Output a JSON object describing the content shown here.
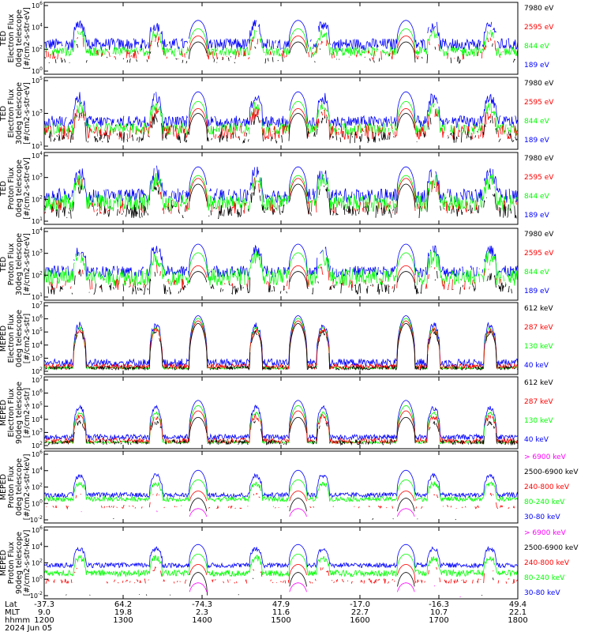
{
  "colors": {
    "black": "#000000",
    "red": "#ff0000",
    "green": "#00ff00",
    "blue": "#0000ff",
    "magenta": "#ff00ff"
  },
  "chart_data": [
    {
      "type": "line",
      "ylabel": [
        "TED",
        "Electron Flux",
        "0deg telescope",
        "[#/cm2-s-str-eV]"
      ],
      "yticks": [
        "10^6",
        "10^4",
        "10^2",
        "10^0"
      ],
      "log_ylim": [
        0,
        6
      ],
      "legend": [
        {
          "label": "7980 eV",
          "color": "black"
        },
        {
          "label": "2595 eV",
          "color": "red"
        },
        {
          "label": "844 eV",
          "color": "green"
        },
        {
          "label": "189 eV",
          "color": "blue"
        }
      ],
      "series": [
        {
          "name": "189 eV",
          "color": "blue",
          "base": 2.5,
          "noise": 0.5,
          "peak": 4.5,
          "dropout": 0.05
        },
        {
          "name": "844 eV",
          "color": "green",
          "base": 1.9,
          "noise": 0.4,
          "peak": 3.8,
          "dropout": 0.1
        },
        {
          "name": "2595 eV",
          "color": "red",
          "base": 1.6,
          "noise": 0.4,
          "peak": 3.2,
          "dropout": 0.5
        },
        {
          "name": "7980 eV",
          "color": "black",
          "base": 1.2,
          "noise": 0.3,
          "peak": 2.7,
          "dropout": 0.7
        }
      ]
    },
    {
      "type": "line",
      "ylabel": [
        "TED",
        "Electron Flux",
        "30deg telescope",
        "[#/cm2-s-str-eV]"
      ],
      "yticks": [
        "10^5",
        "10^3",
        "10^1"
      ],
      "log_ylim": [
        0,
        6
      ],
      "legend": [
        {
          "label": "7980 eV",
          "color": "black"
        },
        {
          "label": "2595 eV",
          "color": "red"
        },
        {
          "label": "844 eV",
          "color": "green"
        },
        {
          "label": "189 eV",
          "color": "blue"
        }
      ],
      "series": [
        {
          "name": "189 eV",
          "color": "blue",
          "base": 2.3,
          "noise": 0.5,
          "peak": 4.8,
          "dropout": 0.05
        },
        {
          "name": "844 eV",
          "color": "green",
          "base": 1.7,
          "noise": 0.5,
          "peak": 4.0,
          "dropout": 0.1
        },
        {
          "name": "2595 eV",
          "color": "red",
          "base": 1.4,
          "noise": 0.6,
          "peak": 3.4,
          "dropout": 0.3
        },
        {
          "name": "7980 eV",
          "color": "black",
          "base": 1.0,
          "noise": 0.5,
          "peak": 3.0,
          "dropout": 0.4
        }
      ]
    },
    {
      "type": "line",
      "ylabel": [
        "TED",
        "Proton Flux",
        "0deg telescope",
        "[#/cm2-s-str-eV]"
      ],
      "yticks": [
        "10^4",
        "10^3",
        "10^2",
        "10^1"
      ],
      "log_ylim": [
        0,
        5
      ],
      "legend": [
        {
          "label": "7980 eV",
          "color": "black"
        },
        {
          "label": "2595 eV",
          "color": "red"
        },
        {
          "label": "844 eV",
          "color": "green"
        },
        {
          "label": "189 eV",
          "color": "blue"
        }
      ],
      "series": [
        {
          "name": "189 eV",
          "color": "blue",
          "base": 2.0,
          "noise": 0.5,
          "peak": 4.0,
          "dropout": 0.15
        },
        {
          "name": "844 eV",
          "color": "green",
          "base": 1.5,
          "noise": 0.6,
          "peak": 3.4,
          "dropout": 0.05
        },
        {
          "name": "2595 eV",
          "color": "red",
          "base": 1.2,
          "noise": 0.5,
          "peak": 3.2,
          "dropout": 0.5
        },
        {
          "name": "7980 eV",
          "color": "black",
          "base": 0.9,
          "noise": 0.5,
          "peak": 2.8,
          "dropout": 0.4
        }
      ]
    },
    {
      "type": "line",
      "ylabel": [
        "TED",
        "Proton Flux",
        "30deg telescope",
        "[#/cm2-s-str-eV]"
      ],
      "yticks": [
        "10^4",
        "10^3",
        "10^2",
        "10^1"
      ],
      "log_ylim": [
        0,
        5
      ],
      "legend": [
        {
          "label": "7980 eV",
          "color": "black"
        },
        {
          "label": "2595 eV",
          "color": "red"
        },
        {
          "label": "844 eV",
          "color": "green"
        },
        {
          "label": "189 eV",
          "color": "blue"
        }
      ],
      "series": [
        {
          "name": "189 eV",
          "color": "blue",
          "base": 2.0,
          "noise": 0.4,
          "peak": 3.9,
          "dropout": 0.1
        },
        {
          "name": "844 eV",
          "color": "green",
          "base": 1.6,
          "noise": 0.6,
          "peak": 3.3,
          "dropout": 0.05
        },
        {
          "name": "2595 eV",
          "color": "red",
          "base": 1.1,
          "noise": 0.4,
          "peak": 2.4,
          "dropout": 0.6
        },
        {
          "name": "7980 eV",
          "color": "black",
          "base": 0.8,
          "noise": 0.4,
          "peak": 2.0,
          "dropout": 0.5
        }
      ]
    },
    {
      "type": "line",
      "ylabel": [
        "MEPED",
        "Electron Flux",
        "0deg telescope",
        "[#/cm2-s-str]"
      ],
      "yticks": [
        "10^7",
        "10^6",
        "10^5",
        "10^4",
        "10^3",
        "10^2"
      ],
      "log_ylim": [
        1.5,
        7
      ],
      "legend": [
        {
          "label": "612 keV",
          "color": "black"
        },
        {
          "label": "287 keV",
          "color": "red"
        },
        {
          "label": "130 keV",
          "color": "green"
        },
        {
          "label": "40 keV",
          "color": "blue"
        }
      ],
      "series": [
        {
          "name": "40 keV",
          "color": "blue",
          "base": 2.4,
          "noise": 0.3,
          "peak": 6.0,
          "dropout": 0
        },
        {
          "name": "130 keV",
          "color": "green",
          "base": 2.0,
          "noise": 0.1,
          "peak": 5.8,
          "dropout": 0
        },
        {
          "name": "287 keV",
          "color": "red",
          "base": 2.1,
          "noise": 0.2,
          "peak": 5.6,
          "dropout": 0
        },
        {
          "name": "612 keV",
          "color": "black",
          "base": 2.0,
          "noise": 0.15,
          "peak": 5.4,
          "dropout": 0.2
        }
      ]
    },
    {
      "type": "line",
      "ylabel": [
        "MEPED",
        "Electron Flux",
        "90deg telescope",
        "[#/cm2-s-str]"
      ],
      "yticks": [
        "10^7",
        "10^6",
        "10^5",
        "10^4",
        "10^3",
        "10^2"
      ],
      "log_ylim": [
        1.5,
        7
      ],
      "legend": [
        {
          "label": "612 keV",
          "color": "black"
        },
        {
          "label": "287 keV",
          "color": "red"
        },
        {
          "label": "130 keV",
          "color": "green"
        },
        {
          "label": "40 keV",
          "color": "blue"
        }
      ],
      "series": [
        {
          "name": "40 keV",
          "color": "blue",
          "base": 2.4,
          "noise": 0.2,
          "peak": 5.2,
          "dropout": 0
        },
        {
          "name": "130 keV",
          "color": "green",
          "base": 2.0,
          "noise": 0.1,
          "peak": 4.8,
          "dropout": 0
        },
        {
          "name": "287 keV",
          "color": "red",
          "base": 2.1,
          "noise": 0.2,
          "peak": 4.4,
          "dropout": 0.05
        },
        {
          "name": "612 keV",
          "color": "black",
          "base": 2.0,
          "noise": 0.2,
          "peak": 3.9,
          "dropout": 0.3
        }
      ]
    },
    {
      "type": "line",
      "ylabel": [
        "MEPED",
        "Proton Flux",
        "0deg telescope",
        "[#/cm2-s-str-keV]"
      ],
      "yticks": [
        "10^6",
        "10^4",
        "10^2",
        "10^0",
        "10^-2"
      ],
      "log_ylim": [
        -3,
        6
      ],
      "legend": [
        {
          "label": "> 6900 keV",
          "color": "magenta"
        },
        {
          "label": "2500-6900 keV",
          "color": "black"
        },
        {
          "label": "240-800 keV",
          "color": "red"
        },
        {
          "label": "80-240 keV",
          "color": "green"
        },
        {
          "label": "30-80 keV",
          "color": "blue"
        }
      ],
      "series": [
        {
          "name": "30-80 keV",
          "color": "blue",
          "base": 0.5,
          "noise": 0.3,
          "peak": 3.6,
          "dropout": 0
        },
        {
          "name": "80-240 keV",
          "color": "green",
          "base": 0.0,
          "noise": 0.3,
          "peak": 2.4,
          "dropout": 0
        },
        {
          "name": "240-800 keV",
          "color": "red",
          "base": -1.0,
          "noise": 0.2,
          "peak": 1.0,
          "dropout": 0.6
        },
        {
          "name": "2500-6900 keV",
          "color": "black",
          "base": -2.5,
          "noise": 0.1,
          "peak": 0.1,
          "dropout": 0.9
        },
        {
          "name": "> 6900 keV",
          "color": "magenta",
          "base": -2.8,
          "noise": 0.1,
          "peak": -1.2,
          "dropout": 0.95
        }
      ]
    },
    {
      "type": "line",
      "ylabel": [
        "MEPED",
        "Proton Flux",
        "90deg telescope",
        "[#/cm2-s-str-keV]"
      ],
      "yticks": [
        "10^6",
        "10^4",
        "10^2",
        "10^0",
        "10^-2"
      ],
      "log_ylim": [
        -3,
        6
      ],
      "legend": [
        {
          "label": "> 6900 keV",
          "color": "magenta"
        },
        {
          "label": "2500-6900 keV",
          "color": "black"
        },
        {
          "label": "240-800 keV",
          "color": "red"
        },
        {
          "label": "80-240 keV",
          "color": "green"
        },
        {
          "label": "30-80 keV",
          "color": "blue"
        }
      ],
      "series": [
        {
          "name": "30-80 keV",
          "color": "blue",
          "base": 1.2,
          "noise": 0.3,
          "peak": 3.8,
          "dropout": 0
        },
        {
          "name": "80-240 keV",
          "color": "green",
          "base": 0.2,
          "noise": 0.4,
          "peak": 2.6,
          "dropout": 0
        },
        {
          "name": "240-800 keV",
          "color": "red",
          "base": -0.8,
          "noise": 0.3,
          "peak": 1.3,
          "dropout": 0.5
        },
        {
          "name": "2500-6900 keV",
          "color": "black",
          "base": -2.5,
          "noise": 0.1,
          "peak": 0.3,
          "dropout": 0.9
        },
        {
          "name": "> 6900 keV",
          "color": "magenta",
          "base": -2.8,
          "noise": 0.1,
          "peak": -1.0,
          "dropout": 0.95
        }
      ]
    }
  ],
  "x_axis": {
    "row_labels": [
      "Lat",
      "MLT",
      "hhmm"
    ],
    "date": "2024 Jun 05",
    "ticks": [
      {
        "hhmm": "1200",
        "lat": "-37.3",
        "mlt": "9.0"
      },
      {
        "hhmm": "1300",
        "lat": "64.2",
        "mlt": "19.8"
      },
      {
        "hhmm": "1400",
        "lat": "-74.3",
        "mlt": "2.3"
      },
      {
        "hhmm": "1500",
        "lat": "47.9",
        "mlt": "11.6"
      },
      {
        "hhmm": "1600",
        "lat": "-17.0",
        "mlt": "22.7"
      },
      {
        "hhmm": "1700",
        "lat": "-16.3",
        "mlt": "10.7"
      },
      {
        "hhmm": "1800",
        "lat": "49.4",
        "mlt": "22.1"
      }
    ],
    "xlim_minutes": [
      0,
      360
    ],
    "pass_centers_minutes": [
      [
        27
      ],
      [
        85
      ],
      [
        161
      ],
      [
        212
      ],
      [
        296
      ],
      [
        339
      ]
    ],
    "radbelt_centers_minutes": [
      [
        117
      ],
      [
        193
      ],
      [
        275
      ]
    ]
  }
}
